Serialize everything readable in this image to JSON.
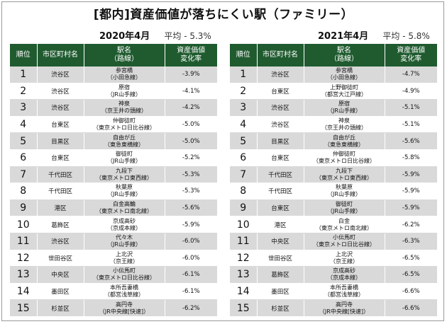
{
  "title": "[都内]資産価値が落ちにくい駅（ファミリー）",
  "headers": {
    "rank": "順位",
    "ward": "市区町村名",
    "station": [
      "駅名",
      "（路線）"
    ],
    "change": [
      "資産価値",
      "変化率"
    ]
  },
  "tables": [
    {
      "year": "2020年4月",
      "average": "平均 - 5.3%",
      "rows": [
        {
          "rank": "1",
          "ward": "渋谷区",
          "station": "参宮橋",
          "line": "（小田急線）",
          "change": "-3.9%"
        },
        {
          "rank": "2",
          "ward": "渋谷区",
          "station": "原宿",
          "line": "（JR山手線）",
          "change": "-4.1%"
        },
        {
          "rank": "3",
          "ward": "渋谷区",
          "station": "神泉",
          "line": "（京王井の頭線）",
          "change": "-4.2%"
        },
        {
          "rank": "4",
          "ward": "台東区",
          "station": "仲御徒町",
          "line": "（東京メトロ日比谷線）",
          "change": "-5.0%"
        },
        {
          "rank": "5",
          "ward": "目黒区",
          "station": "自由が丘",
          "line": "（東急東横線）",
          "change": "-5.0%"
        },
        {
          "rank": "6",
          "ward": "台東区",
          "station": "御徒町",
          "line": "（JR山手線）",
          "change": "-5.2%"
        },
        {
          "rank": "7",
          "ward": "千代田区",
          "station": "九段下",
          "line": "（東京メトロ東西線）",
          "change": "-5.3%"
        },
        {
          "rank": "8",
          "ward": "千代田区",
          "station": "秋葉原",
          "line": "（JR山手線）",
          "change": "-5.3%"
        },
        {
          "rank": "9",
          "ward": "港区",
          "station": "白金高輪",
          "line": "（東京メトロ南北線）",
          "change": "-5.6%"
        },
        {
          "rank": "10",
          "ward": "葛飾区",
          "station": "京成高砂",
          "line": "（京成本線）",
          "change": "-5.9%"
        },
        {
          "rank": "11",
          "ward": "渋谷区",
          "station": "代々木",
          "line": "（JR山手線）",
          "change": "-6.0%"
        },
        {
          "rank": "12",
          "ward": "世田谷区",
          "station": "上北沢",
          "line": "（京王線）",
          "change": "-6.0%"
        },
        {
          "rank": "13",
          "ward": "中央区",
          "station": "小伝馬町",
          "line": "（東京メトロ日比谷線）",
          "change": "-6.1%"
        },
        {
          "rank": "14",
          "ward": "墨田区",
          "station": "本所吾妻橋",
          "line": "（都営浅草線）",
          "change": "-6.1%"
        },
        {
          "rank": "15",
          "ward": "杉並区",
          "station": "高円寺",
          "line": "（JR中央線[快速]）",
          "change": "-6.2%"
        }
      ]
    },
    {
      "year": "2021年4月",
      "average": "平均 - 5.8%",
      "rows": [
        {
          "rank": "1",
          "ward": "渋谷区",
          "station": "参宮橋",
          "line": "（小田急線）",
          "change": "-4.7%"
        },
        {
          "rank": "2",
          "ward": "台東区",
          "station": "上野御徒町",
          "line": "（都営大江戸線）",
          "change": "-4.9%"
        },
        {
          "rank": "3",
          "ward": "渋谷区",
          "station": "原宿",
          "line": "（JR山手線）",
          "change": "-5.1%"
        },
        {
          "rank": "4",
          "ward": "渋谷区",
          "station": "神泉",
          "line": "（京王井の頭線）",
          "change": "-5.1%"
        },
        {
          "rank": "5",
          "ward": "目黒区",
          "station": "自由が丘",
          "line": "（東急東横線）",
          "change": "-5.6%"
        },
        {
          "rank": "6",
          "ward": "台東区",
          "station": "仲御徒町",
          "line": "（東京メトロ日比谷線）",
          "change": "-5.8%"
        },
        {
          "rank": "7",
          "ward": "千代田区",
          "station": "九段下",
          "line": "（東京メトロ東西線）",
          "change": "-5.9%"
        },
        {
          "rank": "8",
          "ward": "千代田区",
          "station": "秋葉原",
          "line": "（JR山手線）",
          "change": "-5.9%"
        },
        {
          "rank": "9",
          "ward": "台東区",
          "station": "御徒町",
          "line": "（JR山手線）",
          "change": "-5.9%"
        },
        {
          "rank": "10",
          "ward": "港区",
          "station": "白金",
          "line": "（東京メトロ南北線）",
          "change": "-6.2%"
        },
        {
          "rank": "11",
          "ward": "中央区",
          "station": "小伝馬町",
          "line": "（東京メトロ日比谷線）",
          "change": "-6.3%"
        },
        {
          "rank": "12",
          "ward": "世田谷区",
          "station": "上北沢",
          "line": "（京王線）",
          "change": "-6.5%"
        },
        {
          "rank": "13",
          "ward": "葛飾区",
          "station": "京成高砂",
          "line": "（京成本線）",
          "change": "-6.5%"
        },
        {
          "rank": "14",
          "ward": "墨田区",
          "station": "本所吾妻橋",
          "line": "（都営浅草線）",
          "change": "-6.6%"
        },
        {
          "rank": "15",
          "ward": "杉並区",
          "station": "高円寺",
          "line": "（JR中央線[快速]）",
          "change": "-6.6%"
        }
      ]
    }
  ],
  "colors": {
    "header_bg": "#1f5b2f",
    "header_text": "#ffffff",
    "row_alt": "#d9d9d9"
  }
}
